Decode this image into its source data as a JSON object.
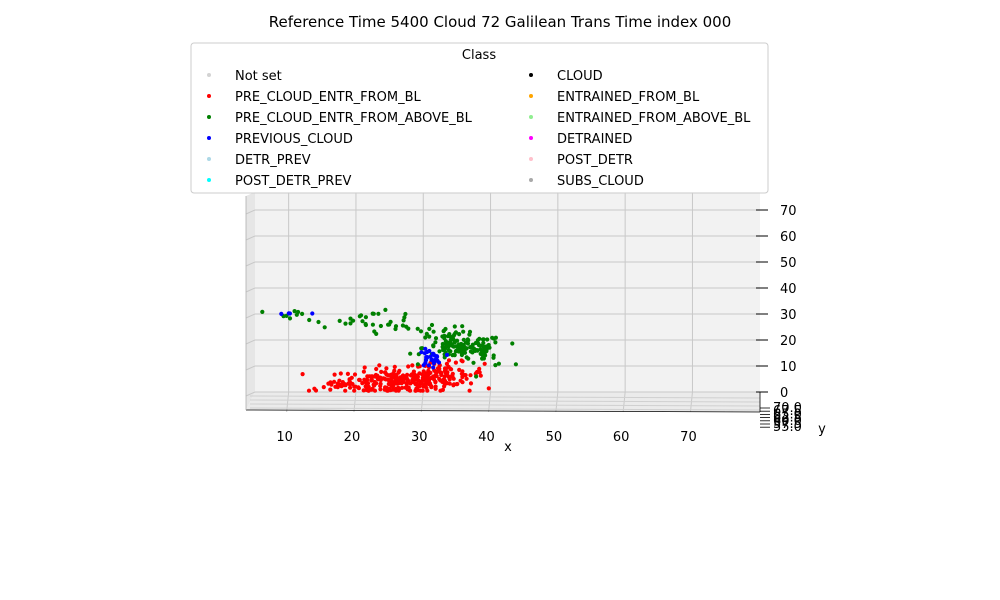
{
  "chart_data": {
    "type": "scatter",
    "projection": "3d",
    "title": "Reference Time 5400 Cloud 72 Galilean Trans Time index 000",
    "xlabel": "x",
    "ylabel": "y",
    "zlabel": "",
    "xlim": [
      5,
      80
    ],
    "zlim": [
      0,
      75
    ],
    "x_ticks": [
      "10",
      "20",
      "30",
      "40",
      "50",
      "60",
      "70"
    ],
    "z_ticks": [
      "0",
      "10",
      "20",
      "30",
      "40",
      "50",
      "60",
      "70"
    ],
    "y_ticks": [
      "70.0",
      "67.5",
      "65.0",
      "62.5",
      "60.0",
      "57.5",
      "55.0"
    ],
    "grid": true,
    "legend": {
      "title": "Class",
      "placement": "top",
      "columns": 2,
      "entries": [
        {
          "label": "Not set",
          "color": "#d3d3d3"
        },
        {
          "label": "PRE_CLOUD_ENTR_FROM_BL",
          "color": "#ff0000"
        },
        {
          "label": "PRE_CLOUD_ENTR_FROM_ABOVE_BL",
          "color": "#008000"
        },
        {
          "label": "PREVIOUS_CLOUD",
          "color": "#0000ff"
        },
        {
          "label": "DETR_PREV",
          "color": "#add8e6"
        },
        {
          "label": "POST_DETR_PREV",
          "color": "#00ffff"
        },
        {
          "label": "CLOUD",
          "color": "#000000"
        },
        {
          "label": "ENTRAINED_FROM_BL",
          "color": "#ffa500"
        },
        {
          "label": "ENTRAINED_FROM_ABOVE_BL",
          "color": "#90ee90"
        },
        {
          "label": "DETRAINED",
          "color": "#ff00ff"
        },
        {
          "label": "POST_DETR",
          "color": "#ffc0cb"
        },
        {
          "label": "SUBS_CLOUD",
          "color": "#a9a9a9"
        }
      ]
    },
    "series": [
      {
        "name": "PRE_CLOUD_ENTR_FROM_BL",
        "color": "#ff0000",
        "clusters": [
          {
            "cx": 26,
            "cz": 4,
            "sx": 4,
            "sz": 2.5,
            "n": 230
          },
          {
            "cx": 33,
            "cz": 7,
            "sx": 3,
            "sz": 2.2,
            "n": 90
          },
          {
            "cx": 17,
            "cz": 2,
            "sx": 2,
            "sz": 1.2,
            "n": 20
          }
        ]
      },
      {
        "name": "PRE_CLOUD_ENTR_FROM_ABOVE_BL",
        "color": "#008000",
        "clusters": [
          {
            "cx": 36,
            "cz": 17,
            "sx": 3,
            "sz": 2.5,
            "n": 120
          },
          {
            "cx": 33,
            "cz": 23,
            "sx": 2.5,
            "sz": 1.2,
            "n": 18
          },
          {
            "cx": 22,
            "cz": 28,
            "sx": 4,
            "sz": 1.5,
            "n": 24
          },
          {
            "cx": 27,
            "cz": 25,
            "sx": 3,
            "sz": 1.3,
            "n": 10
          },
          {
            "cx": 10,
            "cz": 30,
            "sx": 3,
            "sz": 0.7,
            "n": 8
          },
          {
            "cx": 39,
            "cz": 14,
            "sx": 2,
            "sz": 2,
            "n": 12
          }
        ]
      },
      {
        "name": "PREVIOUS_CLOUD",
        "color": "#0000ff",
        "clusters": [
          {
            "cx": 31,
            "cz": 13,
            "sx": 0.8,
            "sz": 1.6,
            "n": 30
          },
          {
            "cx": 10,
            "cz": 30,
            "sx": 1.5,
            "sz": 0.4,
            "n": 4
          }
        ]
      }
    ]
  }
}
